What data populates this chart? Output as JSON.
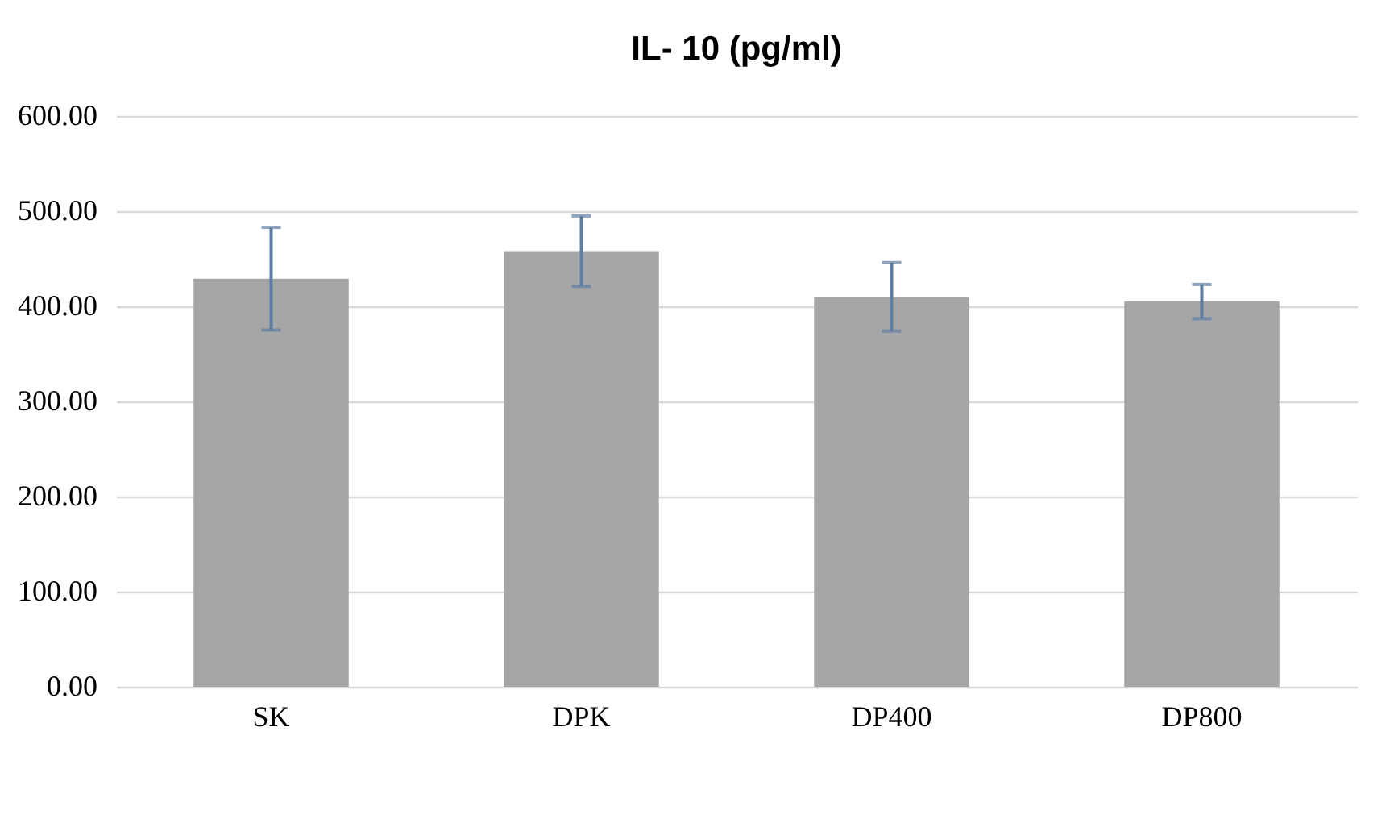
{
  "chart_data": {
    "type": "bar",
    "title": "IL- 10 (pg/ml)",
    "categories": [
      "SK",
      "DPK",
      "DP400",
      "DP800"
    ],
    "values": [
      429,
      458,
      410,
      405
    ],
    "errors": [
      54,
      37,
      36,
      18
    ],
    "color": "#a6a6a6",
    "ylim": [
      0,
      600
    ],
    "yticks": [
      {
        "value": 0,
        "label": "0.00"
      },
      {
        "value": 100,
        "label": "100.00"
      },
      {
        "value": 200,
        "label": "200.00"
      },
      {
        "value": 300,
        "label": "300.00"
      },
      {
        "value": 400,
        "label": "400.00"
      },
      {
        "value": 500,
        "label": "500.00"
      },
      {
        "value": 600,
        "label": "600.00"
      }
    ],
    "grid": "y"
  }
}
